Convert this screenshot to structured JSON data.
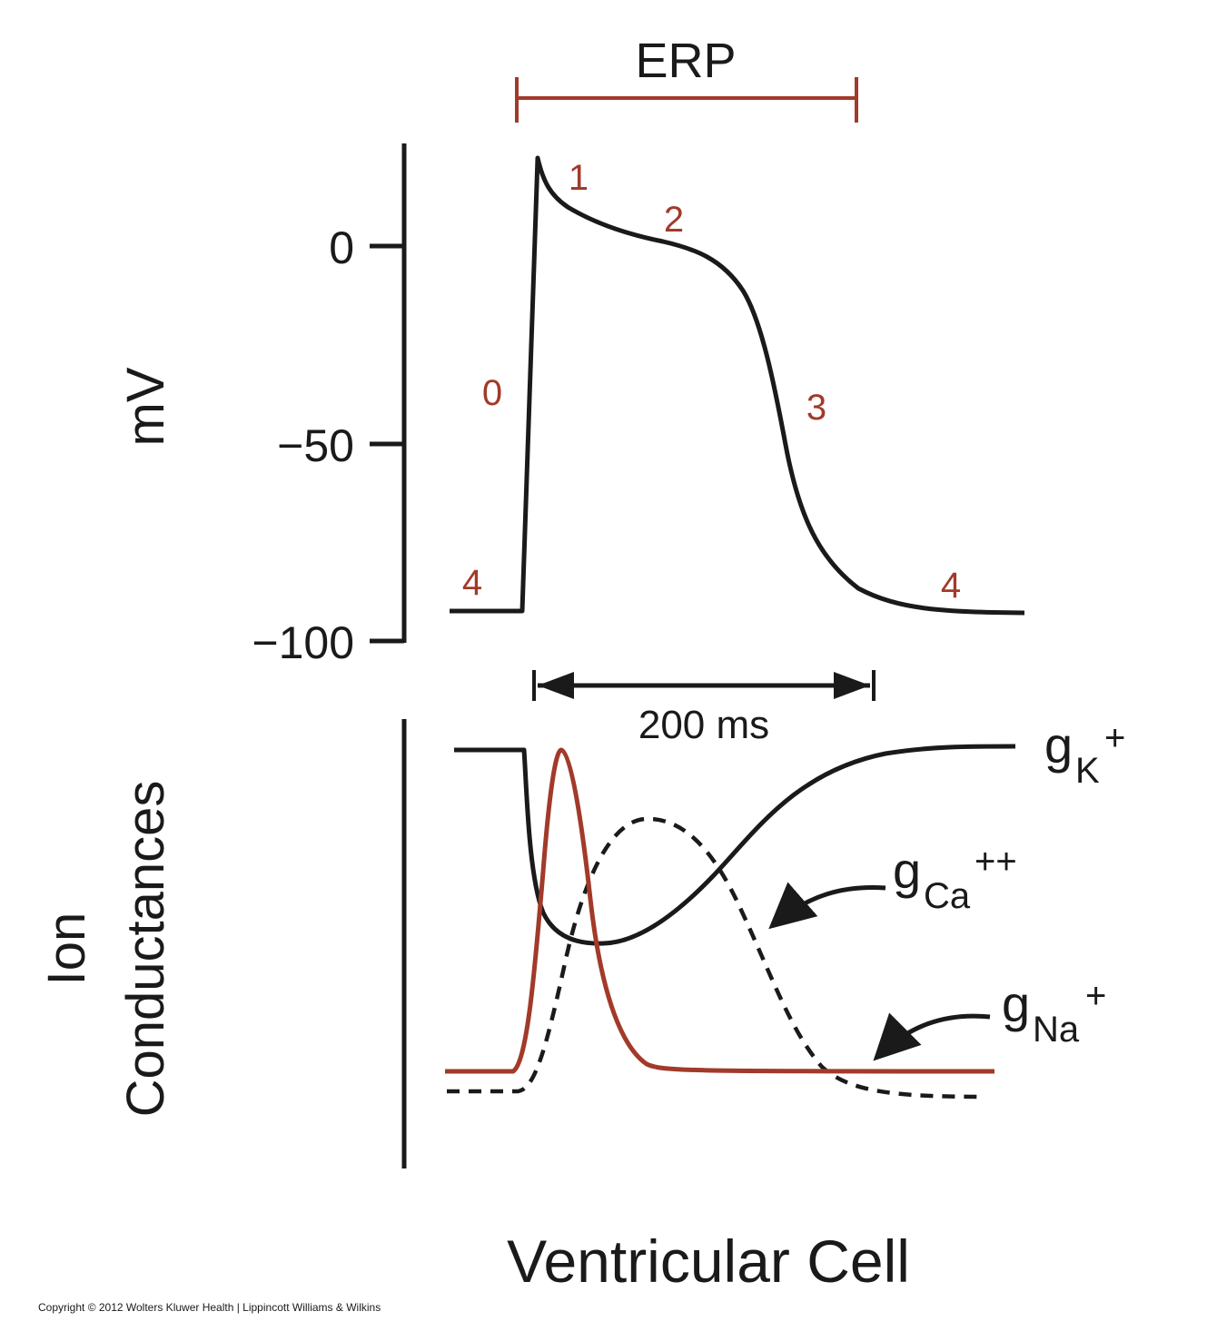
{
  "colors": {
    "black": "#1a1a1a",
    "red": "#a23a2a"
  },
  "erp": {
    "label": "ERP"
  },
  "y_axis": {
    "label": "mV",
    "ticks": [
      {
        "value": 0,
        "label": "0"
      },
      {
        "value": -50,
        "label": "−50"
      },
      {
        "value": -100,
        "label": "−100"
      }
    ]
  },
  "phases": {
    "p0": "0",
    "p1": "1",
    "p2": "2",
    "p3": "3",
    "p4_start": "4",
    "p4_end": "4"
  },
  "duration": {
    "label": "200 ms"
  },
  "conductance_axis": {
    "line1": "Ion",
    "line2": "Conductances"
  },
  "legend": {
    "gk": {
      "main": "g",
      "sub": "K",
      "sup": "+"
    },
    "gca": {
      "main": "g",
      "sub": "Ca",
      "sup": "++"
    },
    "gna": {
      "main": "g",
      "sub": "Na",
      "sup": "+"
    }
  },
  "title": "Ventricular Cell",
  "copyright": "Copyright © 2012 Wolters Kluwer Health | Lippincott Williams & Wilkins"
}
